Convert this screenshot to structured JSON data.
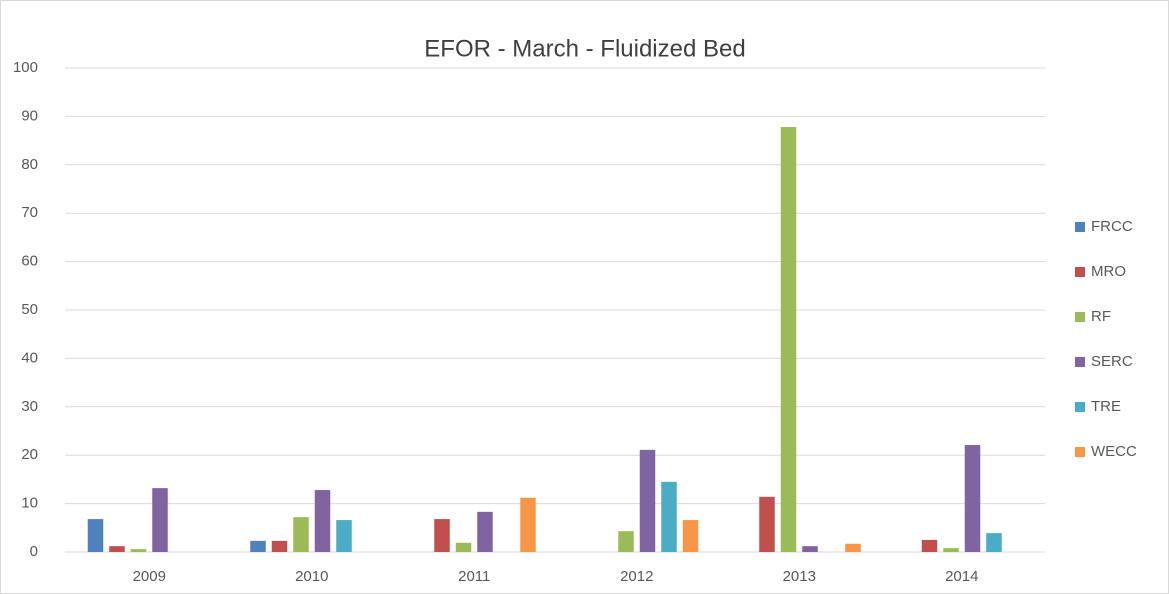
{
  "chart_data": {
    "type": "bar",
    "title": "EFOR - March - Fluidized  Bed",
    "categories": [
      "2009",
      "2010",
      "2011",
      "2012",
      "2013",
      "2014"
    ],
    "series": [
      {
        "name": "FRCC",
        "color": "#4f81bd",
        "values": [
          6.8,
          2.3,
          0,
          0,
          0,
          0
        ]
      },
      {
        "name": "MRO",
        "color": "#c0504d",
        "values": [
          1.2,
          2.3,
          6.8,
          0,
          11.4,
          2.5
        ]
      },
      {
        "name": "RF",
        "color": "#9bbb59",
        "values": [
          0.6,
          7.2,
          1.9,
          4.3,
          87.8,
          0.8
        ]
      },
      {
        "name": "SERC",
        "color": "#8064a2",
        "values": [
          13.2,
          12.8,
          8.3,
          21.1,
          1.2,
          22.1
        ]
      },
      {
        "name": "TRE",
        "color": "#4bacc6",
        "values": [
          0,
          6.6,
          0,
          14.5,
          0,
          3.9
        ]
      },
      {
        "name": "WECC",
        "color": "#f79646",
        "values": [
          0,
          0,
          11.2,
          6.6,
          1.7,
          0
        ]
      }
    ],
    "ylim": [
      0,
      100
    ],
    "yticks": [
      0,
      10,
      20,
      30,
      40,
      50,
      60,
      70,
      80,
      90,
      100
    ],
    "grid": true,
    "legend": "right"
  }
}
